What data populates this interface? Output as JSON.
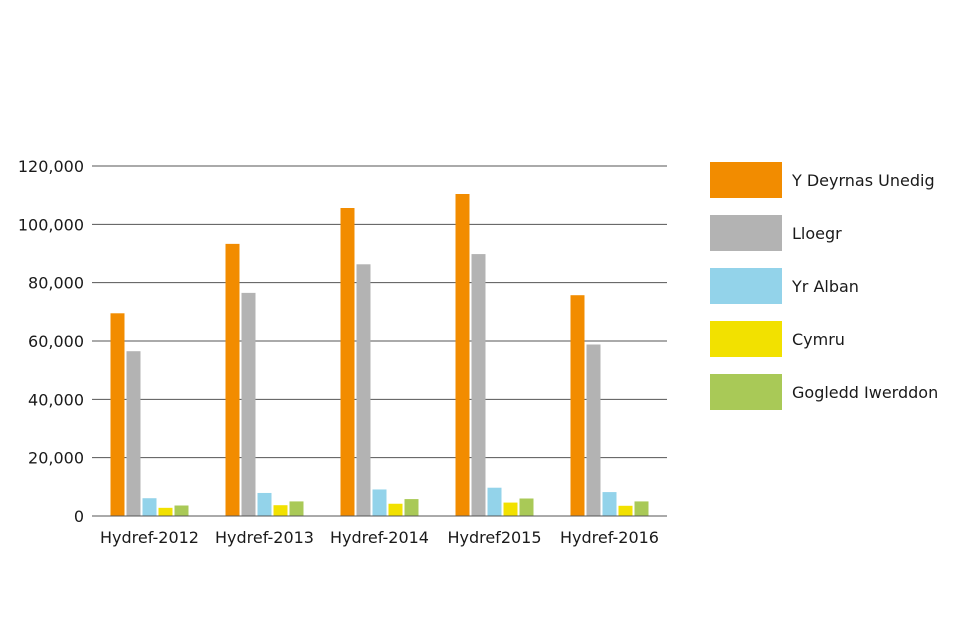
{
  "chart_data": {
    "type": "bar",
    "title": "",
    "xlabel": "",
    "ylabel": "",
    "categories": [
      "Hydref-2012",
      "Hydref-2013",
      "Hydref-2014",
      "Hydref2015",
      "Hydref-2016"
    ],
    "series": [
      {
        "name": "Y Deyrnas Unedig",
        "color": "#f28c00",
        "values": [
          69500,
          93300,
          105600,
          110400,
          75700
        ]
      },
      {
        "name": "Lloegr",
        "color": "#b3b3b3",
        "values": [
          56500,
          76500,
          86300,
          89800,
          58800
        ]
      },
      {
        "name": "Yr Alban",
        "color": "#93d3ea",
        "values": [
          6100,
          7900,
          9100,
          9700,
          8200
        ]
      },
      {
        "name": "Cymru",
        "color": "#f2e100",
        "values": [
          2800,
          3700,
          4200,
          4600,
          3500
        ]
      },
      {
        "name": "Gogledd Iwerddon",
        "color": "#a9c957",
        "values": [
          3600,
          5000,
          5800,
          6000,
          5000
        ]
      }
    ],
    "ylim": [
      0,
      120000
    ],
    "yticks": [
      0,
      20000,
      40000,
      60000,
      80000,
      100000,
      120000
    ],
    "ytick_labels": [
      "0",
      "20,000",
      "40,000",
      "60,000",
      "80,000",
      "100,000",
      "120,000"
    ],
    "grid": true,
    "legend_position": "right"
  }
}
